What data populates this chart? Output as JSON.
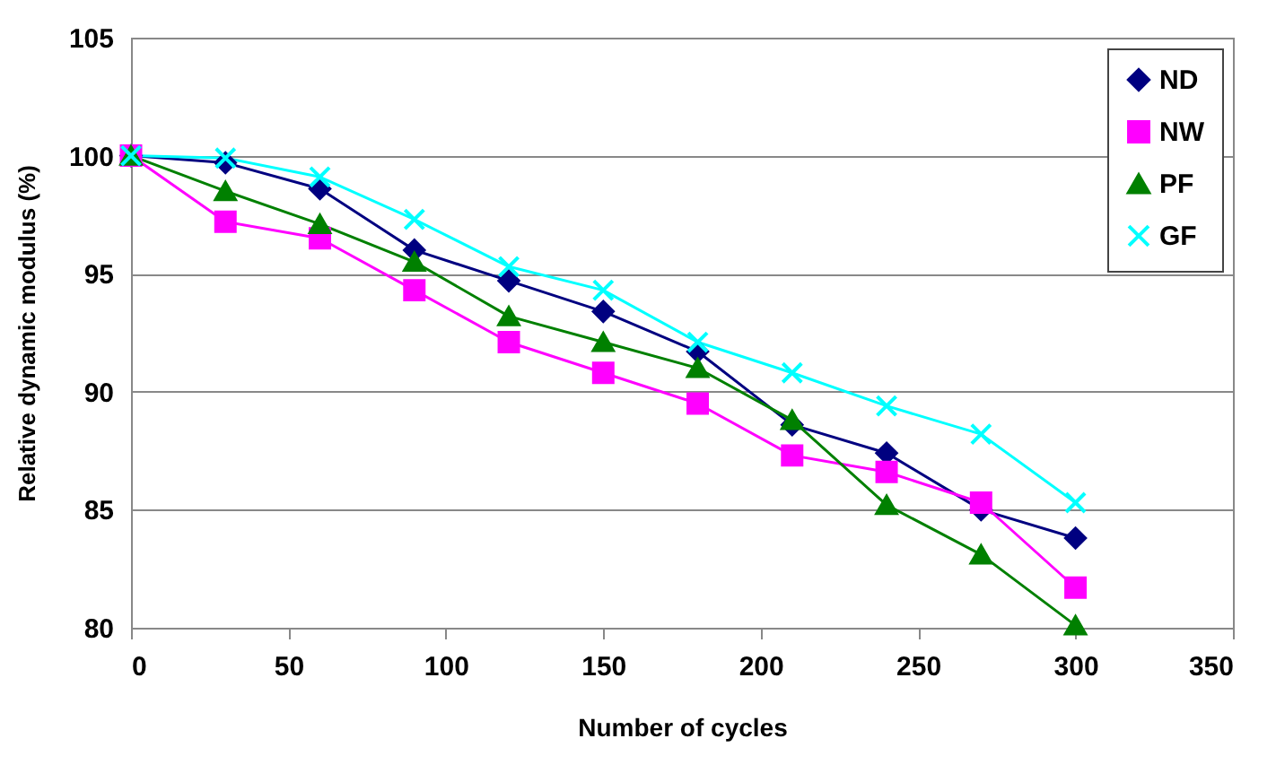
{
  "chart_data": {
    "type": "line",
    "xlabel": "Number of cycles",
    "ylabel": "Relative dynamic modulus (%)",
    "x": [
      0,
      30,
      60,
      90,
      120,
      150,
      180,
      210,
      240,
      270,
      300
    ],
    "xlim": [
      0,
      350
    ],
    "xticks": [
      0,
      50,
      100,
      150,
      200,
      250,
      300,
      350
    ],
    "ylim": [
      80,
      105
    ],
    "yticks": [
      80,
      85,
      90,
      95,
      100,
      105
    ],
    "grid": "y",
    "legend": "top right",
    "series": [
      {
        "name": "ND",
        "color": "#000080",
        "marker": "diamond",
        "values": [
          100,
          99.7,
          98.6,
          96.0,
          94.7,
          93.4,
          91.7,
          88.6,
          87.4,
          85.0,
          83.8
        ]
      },
      {
        "name": "NW",
        "color": "#ff00ff",
        "marker": "square",
        "values": [
          100,
          97.2,
          96.5,
          94.3,
          92.1,
          90.8,
          89.5,
          87.3,
          86.6,
          85.3,
          81.7
        ]
      },
      {
        "name": "PF",
        "color": "#008000",
        "marker": "triangle",
        "values": [
          100,
          98.5,
          97.1,
          95.5,
          93.2,
          92.1,
          91.0,
          88.8,
          85.2,
          83.1,
          80.1
        ]
      },
      {
        "name": "GF",
        "color": "#00ffff",
        "marker": "cross",
        "values": [
          100,
          99.9,
          99.1,
          97.3,
          95.3,
          94.3,
          92.1,
          90.8,
          89.4,
          88.2,
          85.3
        ]
      }
    ]
  }
}
